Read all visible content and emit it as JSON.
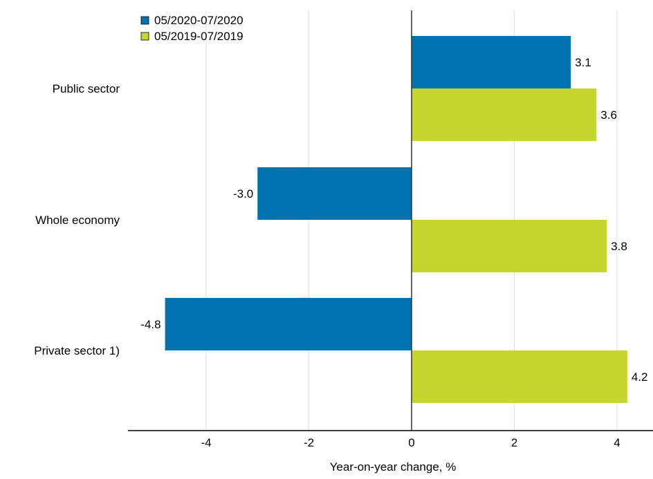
{
  "chart_data": {
    "type": "bar",
    "orientation": "horizontal",
    "categories": [
      "Public sector",
      "Whole economy",
      "Private sector 1)"
    ],
    "series": [
      {
        "name": "05/2020-07/2020",
        "values": [
          3.1,
          -3.0,
          -4.8
        ],
        "value_labels": [
          "3.1",
          "-3.0",
          "-4.8"
        ],
        "color": "#0073b0"
      },
      {
        "name": "05/2019-07/2019",
        "values": [
          3.6,
          3.8,
          4.2
        ],
        "value_labels": [
          "3.6",
          "3.8",
          "4.2"
        ],
        "color": "#c5d62f"
      }
    ],
    "xlim": [
      -5.5,
      4.7
    ],
    "xticks": [
      -4,
      -2,
      0,
      2,
      4
    ],
    "xtick_labels": [
      "-4",
      "-2",
      "0",
      "2",
      "4"
    ],
    "xlabel": "Year-on-year change, %",
    "ylabel": "",
    "title": "",
    "grid": "vertical",
    "legend_position": "top-left"
  }
}
